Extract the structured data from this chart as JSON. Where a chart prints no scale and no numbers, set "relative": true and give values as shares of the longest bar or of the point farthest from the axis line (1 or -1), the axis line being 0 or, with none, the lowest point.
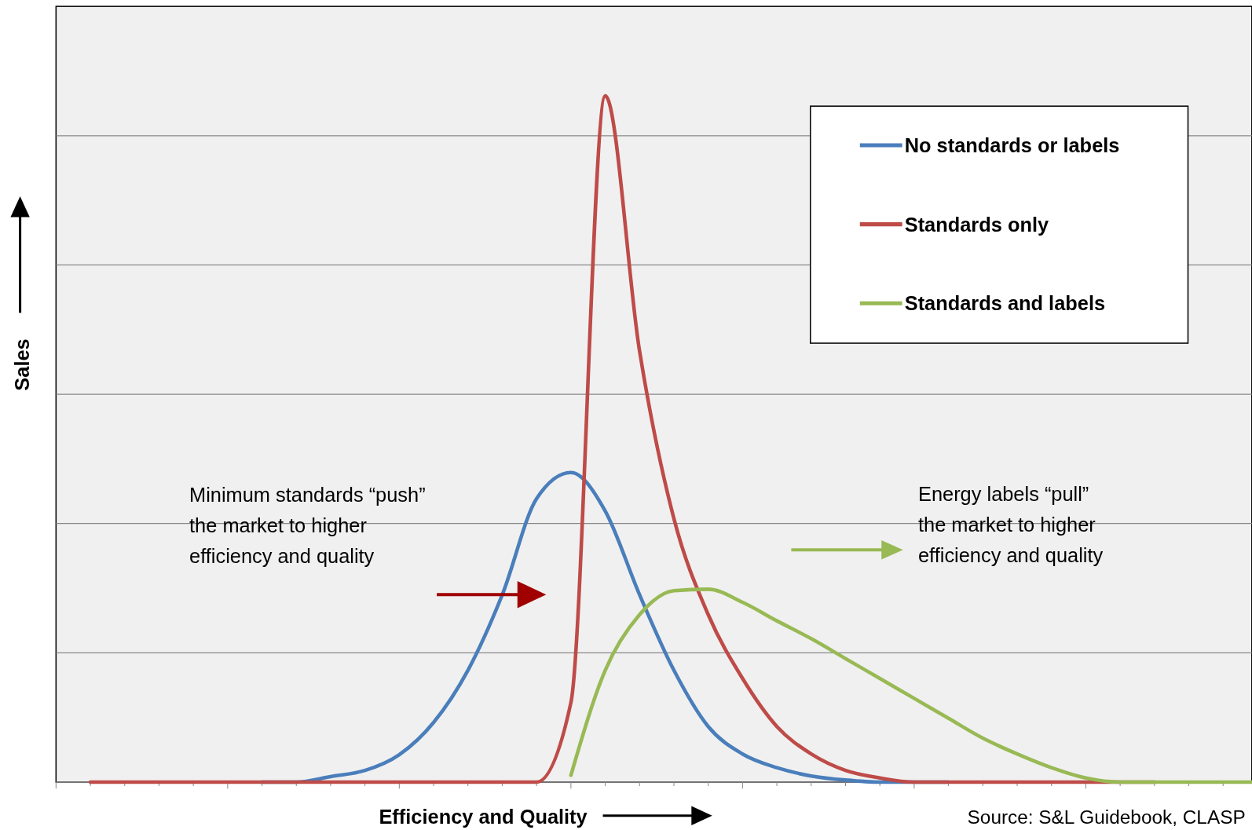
{
  "chart_data": {
    "type": "line",
    "relative": true,
    "xlabel": "Efficiency and Quality",
    "ylabel": "Sales",
    "grid": true,
    "legend": "top right",
    "line_style": "solid",
    "categories": [
      null,
      null,
      null,
      null,
      null,
      null,
      null,
      null,
      null,
      null,
      null,
      null,
      null,
      null,
      null,
      null,
      null,
      null,
      null,
      null,
      null,
      null,
      null,
      null,
      null,
      null,
      null,
      null,
      null,
      null,
      null,
      null,
      null,
      null,
      null,
      null
    ],
    "series": [
      {
        "name": "No standards or labels",
        "color": "#4a7ebb",
        "values": [
          null,
          null,
          null,
          null,
          null,
          null,
          0,
          0,
          0.008,
          0.017,
          0.04,
          0.087,
          0.163,
          0.273,
          0.413,
          0.451,
          0.395,
          0.273,
          0.163,
          0.081,
          0.041,
          0.021,
          0.009,
          0.003,
          0,
          0,
          0,
          null,
          null,
          null,
          null,
          null,
          null,
          null,
          null,
          null
        ]
      },
      {
        "name": "Standards only",
        "color": "#be4b48",
        "values": [
          null,
          0,
          0,
          0,
          0,
          0,
          0,
          0,
          0,
          0,
          0,
          0,
          0,
          0,
          0,
          0.116,
          1,
          0.628,
          0.384,
          0.244,
          0.151,
          0.081,
          0.041,
          0.017,
          0.006,
          0,
          0,
          0,
          0,
          0,
          0,
          0,
          0,
          null,
          null,
          null
        ]
      },
      {
        "name": "Standards and labels",
        "color": "#98b954",
        "values": [
          null,
          null,
          null,
          null,
          null,
          null,
          null,
          null,
          null,
          null,
          null,
          null,
          null,
          null,
          null,
          0.01,
          0.163,
          0.244,
          0.279,
          0.281,
          0.262,
          0.235,
          0.209,
          0.18,
          0.151,
          0.122,
          0.093,
          0.064,
          0.041,
          0.021,
          0.006,
          0,
          0,
          0,
          0,
          0
        ]
      }
    ],
    "annotations": [
      {
        "text": "Minimum standards “push”\nthe market to higher\nefficiency and quality"
      },
      {
        "text": "Energy labels “pull”\nthe market to higher\nefficiency and quality"
      },
      "Source: S&L Guidebook, CLASP"
    ]
  }
}
